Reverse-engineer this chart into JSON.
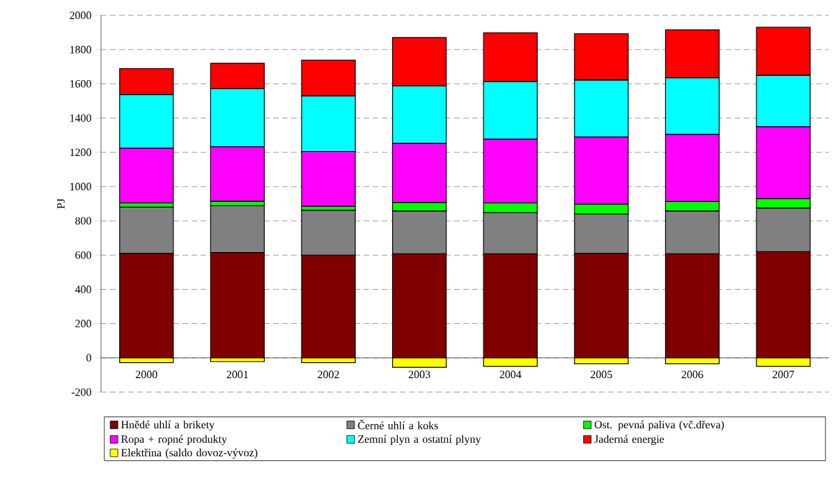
{
  "chart_data": {
    "type": "bar",
    "stacked": true,
    "ylabel": "PJ",
    "categories": [
      "2000",
      "2001",
      "2002",
      "2003",
      "2004",
      "2005",
      "2006",
      "2007"
    ],
    "series": [
      {
        "name": "Hnědé uhlí a brikety",
        "color": "#800000",
        "values": [
          610,
          615,
          600,
          608,
          608,
          610,
          608,
          620
        ]
      },
      {
        "name": "Černé uhlí a koks",
        "color": "#808080",
        "values": [
          270,
          273,
          262,
          250,
          240,
          230,
          250,
          255
        ]
      },
      {
        "name": "Ost. pevná paliva (vč.dřeva)",
        "color": "#00ff00",
        "values": [
          25,
          27,
          23,
          50,
          57,
          58,
          55,
          55
        ]
      },
      {
        "name": "Ropa + ropné produkty",
        "color": "#ff00ff",
        "values": [
          320,
          318,
          320,
          345,
          373,
          392,
          392,
          420
        ]
      },
      {
        "name": "Zemní plyn a ostatní plyny",
        "color": "#00ffff",
        "values": [
          313,
          339,
          325,
          335,
          335,
          332,
          330,
          300
        ]
      },
      {
        "name": "Jaderná energie",
        "color": "#ff0000",
        "values": [
          150,
          148,
          208,
          282,
          285,
          271,
          280,
          280
        ]
      },
      {
        "name": "Elektřina (saldo dovoz-vývoz)",
        "color": "#ffff00",
        "values": [
          -28,
          -22,
          -28,
          -55,
          -50,
          -35,
          -35,
          -50
        ]
      }
    ],
    "ylim": [
      -200,
      2000
    ],
    "yticks": [
      -200,
      0,
      200,
      400,
      600,
      800,
      1000,
      1200,
      1400,
      1600,
      1800,
      2000
    ],
    "grid": "y",
    "legend": "bottom"
  }
}
